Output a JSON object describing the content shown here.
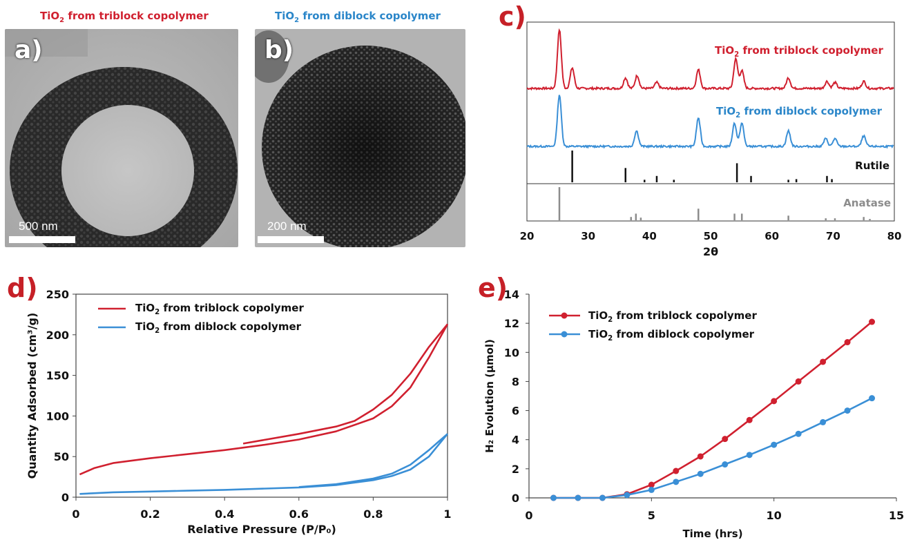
{
  "panels": {
    "a": {
      "letter": "a)",
      "caption_prefix": "TiO",
      "caption_sub": "2",
      "caption_suffix": " from triblock copolymer",
      "scale_label": "500 nm"
    },
    "b": {
      "letter": "b)",
      "caption_prefix": "TiO",
      "caption_sub": "2",
      "caption_suffix": " from diblock copolymer",
      "scale_label": "200 nm"
    },
    "c": {
      "letter": "c)"
    },
    "d": {
      "letter": "d)"
    },
    "e": {
      "letter": "e)"
    }
  },
  "colors": {
    "red": "#d0202f",
    "blue": "#3a8fd6",
    "panel_letter": "#c62027",
    "black": "#111111",
    "gray": "#8c8c8c"
  },
  "chart_data": [
    {
      "id": "xrd",
      "type": "line",
      "xlabel": "2θ",
      "ylabel": "",
      "xlim": [
        20,
        80
      ],
      "xticks": [
        "20",
        "30",
        "40",
        "50",
        "60",
        "70",
        "80"
      ],
      "series": [
        {
          "name": "TiO₂ from triblock copolymer",
          "label_prefix": "TiO",
          "label_sub": "2",
          "label_suffix": " from triblock copolymer",
          "peaks": [
            [
              25.3,
              1.0
            ],
            [
              27.4,
              0.35
            ],
            [
              36.1,
              0.18
            ],
            [
              38.0,
              0.22
            ],
            [
              41.2,
              0.1
            ],
            [
              48.0,
              0.32
            ],
            [
              54.1,
              0.5
            ],
            [
              55.1,
              0.3
            ],
            [
              62.7,
              0.18
            ],
            [
              69.0,
              0.12
            ],
            [
              70.3,
              0.1
            ],
            [
              75.0,
              0.12
            ]
          ]
        },
        {
          "name": "TiO₂ from diblock copolymer",
          "label_prefix": "TiO",
          "label_sub": "2",
          "label_suffix": " from diblock copolymer",
          "peaks": [
            [
              25.3,
              1.0
            ],
            [
              37.9,
              0.3
            ],
            [
              48.0,
              0.55
            ],
            [
              53.9,
              0.45
            ],
            [
              55.1,
              0.45
            ],
            [
              62.7,
              0.3
            ],
            [
              68.8,
              0.15
            ],
            [
              70.3,
              0.15
            ],
            [
              75.0,
              0.2
            ]
          ]
        },
        {
          "name": "Rutile",
          "sticks": [
            [
              27.4,
              1.0
            ],
            [
              36.1,
              0.45
            ],
            [
              39.2,
              0.08
            ],
            [
              41.2,
              0.2
            ],
            [
              44.0,
              0.08
            ],
            [
              54.3,
              0.6
            ],
            [
              56.6,
              0.2
            ],
            [
              62.7,
              0.08
            ],
            [
              64.0,
              0.1
            ],
            [
              69.0,
              0.2
            ],
            [
              69.8,
              0.1
            ]
          ]
        },
        {
          "name": "Anatase",
          "sticks": [
            [
              25.3,
              1.0
            ],
            [
              37.0,
              0.1
            ],
            [
              37.8,
              0.2
            ],
            [
              38.6,
              0.08
            ],
            [
              48.0,
              0.35
            ],
            [
              53.9,
              0.2
            ],
            [
              55.1,
              0.2
            ],
            [
              62.7,
              0.14
            ],
            [
              68.8,
              0.06
            ],
            [
              70.3,
              0.06
            ],
            [
              75.0,
              0.1
            ],
            [
              76.0,
              0.04
            ]
          ]
        }
      ]
    },
    {
      "id": "bet",
      "type": "line",
      "xlabel": "Relative Pressure (P/P₀)",
      "ylabel": "Quantity Adsorbed (cm³/g)",
      "xlim": [
        0,
        1
      ],
      "ylim": [
        0,
        250
      ],
      "xticks": [
        "0",
        "0.2",
        "0.4",
        "0.6",
        "0.8",
        "1"
      ],
      "yticks": [
        "0",
        "50",
        "100",
        "150",
        "200",
        "250"
      ],
      "legend": "top-left",
      "series": [
        {
          "name": "TiO₂ from triblock copolymer",
          "label_prefix": "TiO",
          "label_sub": "2",
          "label_suffix": " from triblock copolymer",
          "adsorption": [
            [
              0.01,
              28
            ],
            [
              0.05,
              36
            ],
            [
              0.1,
              42
            ],
            [
              0.2,
              48
            ],
            [
              0.3,
              53
            ],
            [
              0.4,
              58
            ],
            [
              0.5,
              64
            ],
            [
              0.6,
              71
            ],
            [
              0.7,
              81
            ],
            [
              0.8,
              97
            ],
            [
              0.85,
              112
            ],
            [
              0.9,
              135
            ],
            [
              0.95,
              172
            ],
            [
              1.0,
              213
            ]
          ],
          "desorption": [
            [
              1.0,
              213
            ],
            [
              0.95,
              185
            ],
            [
              0.9,
              152
            ],
            [
              0.85,
              126
            ],
            [
              0.8,
              108
            ],
            [
              0.75,
              94
            ],
            [
              0.7,
              87
            ],
            [
              0.6,
              78
            ],
            [
              0.5,
              70
            ],
            [
              0.45,
              66
            ]
          ]
        },
        {
          "name": "TiO₂ from diblock copolymer",
          "label_prefix": "TiO",
          "label_sub": "2",
          "label_suffix": " from diblock copolymer",
          "adsorption": [
            [
              0.01,
              4
            ],
            [
              0.1,
              6
            ],
            [
              0.2,
              7
            ],
            [
              0.3,
              8
            ],
            [
              0.4,
              9
            ],
            [
              0.5,
              10.5
            ],
            [
              0.6,
              12
            ],
            [
              0.7,
              15
            ],
            [
              0.8,
              21
            ],
            [
              0.85,
              26
            ],
            [
              0.9,
              34
            ],
            [
              0.95,
              50
            ],
            [
              1.0,
              78
            ]
          ],
          "desorption": [
            [
              1.0,
              78
            ],
            [
              0.95,
              58
            ],
            [
              0.9,
              40
            ],
            [
              0.85,
              29
            ],
            [
              0.8,
              23
            ],
            [
              0.7,
              16
            ],
            [
              0.6,
              12.5
            ]
          ]
        }
      ]
    },
    {
      "id": "h2",
      "type": "line",
      "xlabel": "Time (hrs)",
      "ylabel": "H₂ Evolution (μmol)",
      "xlim": [
        0,
        15
      ],
      "ylim": [
        0,
        14
      ],
      "xticks": [
        "0",
        "5",
        "10",
        "15"
      ],
      "yticks": [
        "0",
        "2",
        "4",
        "6",
        "8",
        "10",
        "12",
        "14"
      ],
      "legend": "top-left",
      "series": [
        {
          "name": "TiO₂ from triblock copolymer",
          "label_prefix": "TiO",
          "label_sub": "2",
          "label_suffix": " from triblock copolymer",
          "x": [
            1,
            2,
            3,
            4,
            5,
            6,
            7,
            8,
            9,
            10,
            11,
            12,
            13,
            14
          ],
          "y": [
            0,
            0,
            0,
            0.25,
            0.9,
            1.85,
            2.85,
            4.05,
            5.35,
            6.65,
            8.0,
            9.35,
            10.7,
            12.1
          ]
        },
        {
          "name": "TiO₂ from diblock copolymer",
          "label_prefix": "TiO",
          "label_sub": "2",
          "label_suffix": " from diblock copolymer",
          "x": [
            1,
            2,
            3,
            4,
            5,
            6,
            7,
            8,
            9,
            10,
            11,
            12,
            13,
            14
          ],
          "y": [
            0,
            0,
            0,
            0.2,
            0.55,
            1.1,
            1.65,
            2.3,
            2.95,
            3.65,
            4.4,
            5.2,
            6.0,
            6.85
          ]
        }
      ]
    }
  ]
}
